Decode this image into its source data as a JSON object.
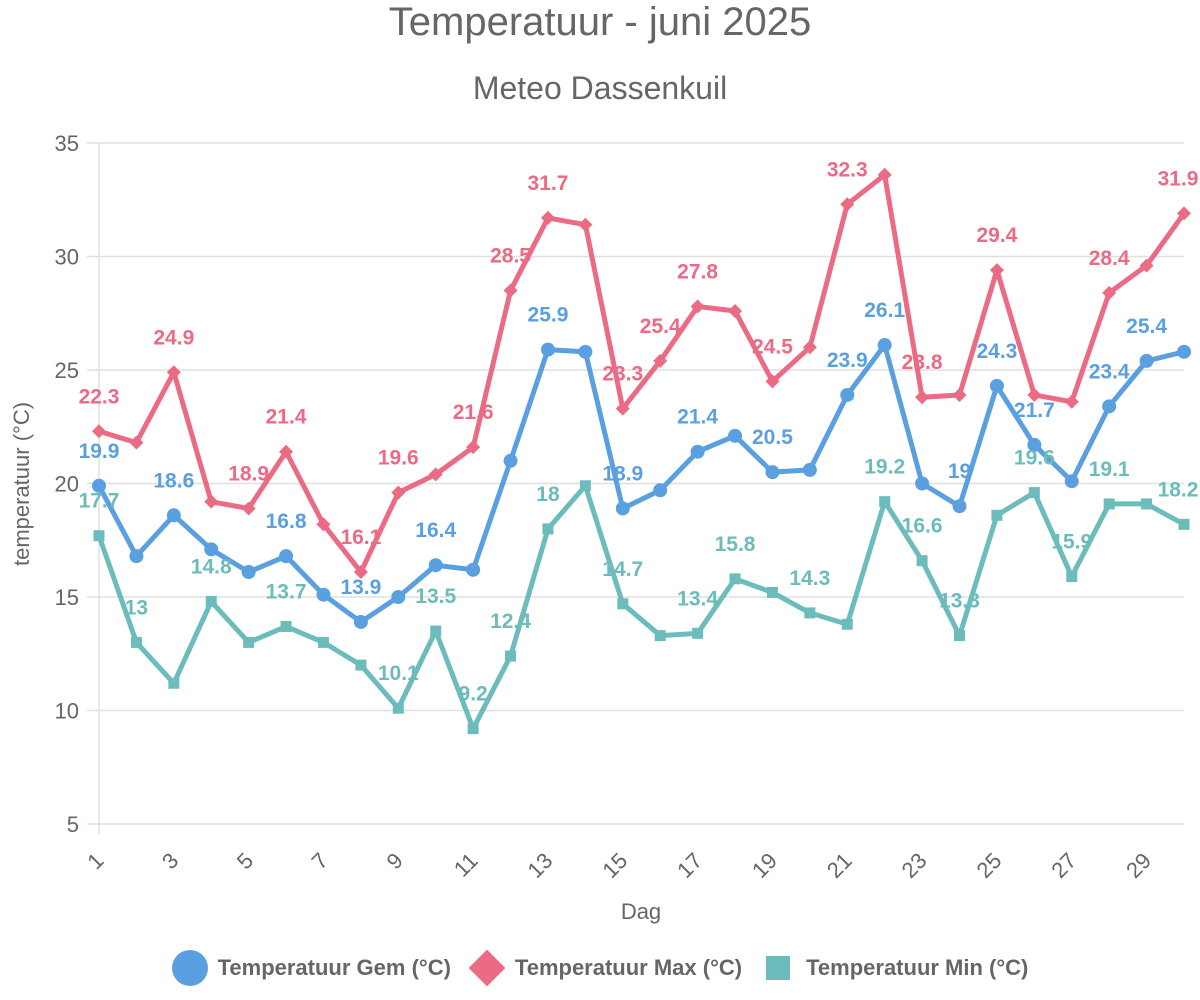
{
  "chart_data": {
    "type": "line",
    "title": "Temperatuur - juni 2025",
    "subtitle": "Meteo Dassenkuil",
    "xlabel": "Dag",
    "ylabel": "temperatuur (°C)",
    "ylim": [
      5,
      35
    ],
    "yticks": [
      5,
      10,
      15,
      20,
      25,
      30,
      35
    ],
    "xticks": [
      1,
      3,
      5,
      7,
      9,
      11,
      13,
      15,
      17,
      19,
      21,
      23,
      25,
      27,
      29
    ],
    "grid": true,
    "legend_position": "bottom",
    "x": [
      1,
      2,
      3,
      4,
      5,
      6,
      7,
      8,
      9,
      10,
      11,
      12,
      13,
      14,
      15,
      16,
      17,
      18,
      19,
      20,
      21,
      22,
      23,
      24,
      25,
      26,
      27,
      28,
      29,
      30
    ],
    "series": [
      {
        "name": "Temperatuur Gem (°C)",
        "color": "#5aa0e0",
        "marker": "circle",
        "values": [
          19.9,
          16.8,
          18.6,
          17.1,
          16.1,
          16.8,
          15.1,
          13.9,
          15.0,
          16.4,
          16.2,
          21.0,
          25.9,
          25.8,
          18.9,
          19.7,
          21.4,
          22.1,
          20.5,
          20.6,
          23.9,
          26.1,
          20.0,
          19.0,
          24.3,
          21.7,
          20.1,
          23.4,
          25.4,
          25.8
        ],
        "labeled": [
          1,
          3,
          6,
          8,
          10,
          13,
          15,
          17,
          19,
          21,
          22,
          24,
          25,
          26,
          28,
          29
        ]
      },
      {
        "name": "Temperatuur Max (°C)",
        "color": "#eb6a84",
        "marker": "diamond",
        "values": [
          22.3,
          21.8,
          24.9,
          19.2,
          18.9,
          21.4,
          18.2,
          16.1,
          19.6,
          20.4,
          21.6,
          28.5,
          31.7,
          31.4,
          23.3,
          25.4,
          27.8,
          27.6,
          24.5,
          26.0,
          32.3,
          33.6,
          23.8,
          23.9,
          29.4,
          23.9,
          23.6,
          28.4,
          29.6,
          31.9
        ],
        "labeled": [
          1,
          3,
          5,
          6,
          8,
          9,
          11,
          12,
          13,
          15,
          16,
          17,
          19,
          21,
          23,
          25,
          28,
          30
        ]
      },
      {
        "name": "Temperatuur Min (°C)",
        "color": "#6cbcbc",
        "marker": "square",
        "values": [
          17.7,
          13.0,
          11.2,
          14.8,
          13.0,
          13.7,
          13.0,
          12.0,
          10.1,
          13.5,
          9.2,
          12.4,
          18.0,
          19.9,
          14.7,
          13.3,
          13.4,
          15.8,
          15.2,
          14.3,
          13.8,
          19.2,
          16.6,
          13.3,
          18.6,
          19.6,
          15.9,
          19.1,
          19.1,
          18.2
        ],
        "labeled": [
          1,
          2,
          4,
          6,
          9,
          10,
          11,
          12,
          13,
          15,
          17,
          18,
          20,
          22,
          23,
          24,
          26,
          27,
          28,
          30
        ]
      }
    ]
  }
}
